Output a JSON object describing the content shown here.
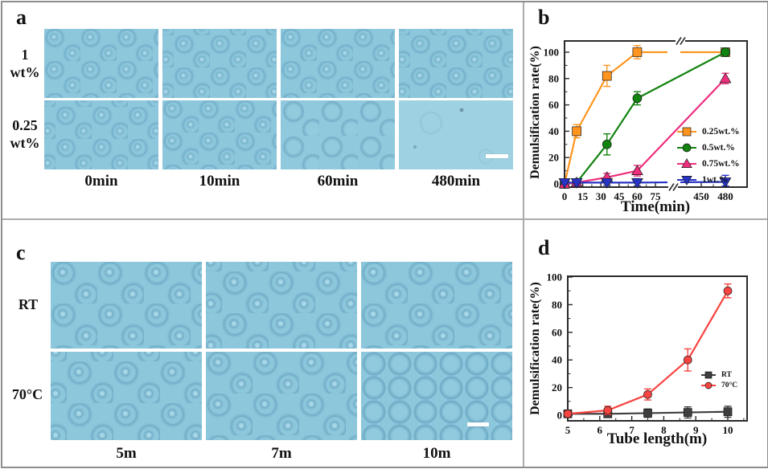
{
  "figure": {
    "border_color": "#8e8e8e",
    "micrograph_base_color": "#8cc7dc",
    "panels": {
      "a": {
        "label": "a",
        "rows": [
          {
            "top": "1",
            "bottom": "wt%"
          },
          {
            "top": "0.25",
            "bottom": "wt%"
          }
        ],
        "cols": [
          "0min",
          "10min",
          "60min",
          "480min"
        ]
      },
      "b": {
        "label": "b"
      },
      "c": {
        "label": "c",
        "rows": [
          "RT",
          "70°C"
        ],
        "cols": [
          "5m",
          "7m",
          "10m"
        ]
      },
      "d": {
        "label": "d"
      }
    }
  },
  "chart_data": [
    {
      "id": "b",
      "type": "line",
      "title": "",
      "xlabel": "Time(min)",
      "ylabel": "Demulsification rate(%)",
      "xticks_before_break": [
        0,
        15,
        30,
        45,
        60,
        75
      ],
      "xticks_after_break": [
        450,
        480
      ],
      "x_axis_break": true,
      "yticks": [
        0,
        20,
        40,
        60,
        80,
        100
      ],
      "ylim": [
        -3,
        109
      ],
      "grid": false,
      "legend_position": "bottom-right",
      "series": [
        {
          "name": "0.25wt.%",
          "color": "#FF951F",
          "marker": "square",
          "x": [
            0,
            10,
            35,
            60,
            480
          ],
          "y": [
            0,
            40,
            82,
            100,
            100
          ],
          "yerr": [
            2,
            5,
            8,
            5,
            3
          ]
        },
        {
          "name": "0.5wt.%",
          "color": "#12830F",
          "marker": "circle",
          "x": [
            0,
            10,
            35,
            60,
            480
          ],
          "y": [
            0,
            1,
            30,
            65,
            100
          ],
          "yerr": [
            1,
            2,
            8,
            5,
            3
          ]
        },
        {
          "name": "0.75wt.%",
          "color": "#EF2E7D",
          "marker": "triangle-up",
          "x": [
            0,
            10,
            35,
            60,
            480
          ],
          "y": [
            0,
            1,
            5,
            10,
            80
          ],
          "yerr": [
            1,
            2,
            3,
            4,
            4
          ]
        },
        {
          "name": "1wt.%",
          "color": "#2733C4",
          "marker": "triangle-down",
          "x": [
            0,
            10,
            35,
            60,
            480
          ],
          "y": [
            1,
            1,
            1,
            1,
            1.5
          ],
          "yerr": [
            1,
            2,
            2,
            3,
            5
          ]
        }
      ]
    },
    {
      "id": "d",
      "type": "line",
      "title": "",
      "xlabel": "Tube length(m)",
      "ylabel": "Demulsification rate(%)",
      "xticks": [
        5,
        6,
        7,
        8,
        9,
        10
      ],
      "xlim": [
        5,
        10.6
      ],
      "yticks": [
        0,
        20,
        40,
        60,
        80,
        100
      ],
      "ylim": [
        -4,
        105
      ],
      "grid": false,
      "legend_position": "middle-right",
      "series": [
        {
          "name": "RT",
          "color": "#3E3E3E",
          "marker": "square",
          "x": [
            5,
            6.25,
            7.5,
            8.75,
            10
          ],
          "y": [
            1,
            1,
            1.5,
            2,
            2.5
          ],
          "yerr": [
            1,
            2,
            3,
            4,
            4
          ]
        },
        {
          "name": "70°C",
          "color": "#F74441",
          "marker": "circle",
          "x": [
            5,
            6.25,
            7.5,
            8.75,
            10
          ],
          "y": [
            1,
            3.5,
            15,
            40,
            90
          ],
          "yerr": [
            2,
            3,
            4,
            8,
            5
          ]
        }
      ]
    }
  ]
}
